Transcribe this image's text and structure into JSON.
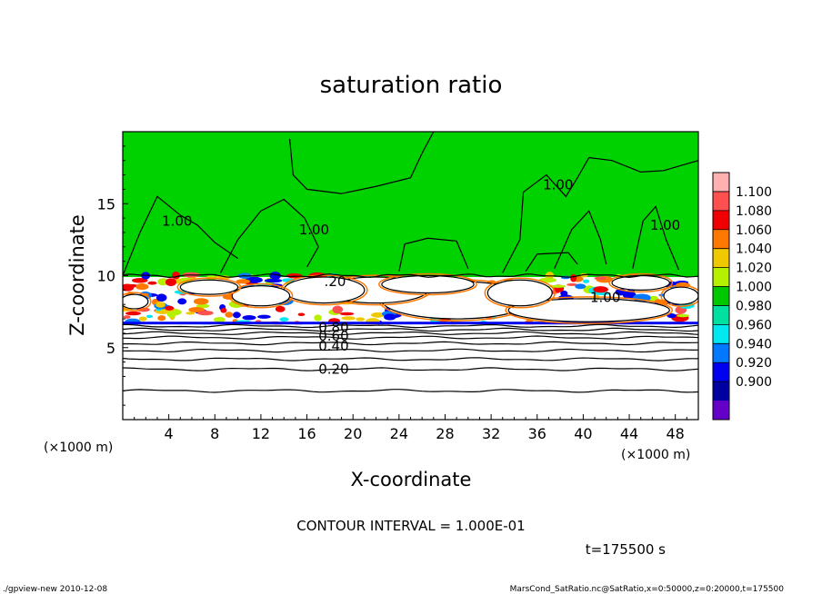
{
  "chart_data": {
    "type": "heatmap",
    "title": "saturation ratio",
    "xlabel": "X-coordinate",
    "ylabel": "Z-coordinate",
    "x_unit_label": "(×1000 m)",
    "y_unit_label": "(×1000 m)",
    "xlim": [
      0,
      50
    ],
    "ylim": [
      0,
      20
    ],
    "x_ticks": [
      4,
      8,
      12,
      16,
      20,
      24,
      28,
      32,
      36,
      40,
      44,
      48
    ],
    "y_ticks": [
      5,
      10,
      15
    ],
    "contour_interval_text": "CONTOUR INTERVAL = 1.000E-01",
    "time_text": "t=175500 s",
    "contour_labels": [
      {
        "x": 36.5,
        "z": 16.3,
        "text": "1.00"
      },
      {
        "x": 3.4,
        "z": 13.8,
        "text": "1.00"
      },
      {
        "x": 15.3,
        "z": 13.2,
        "text": "1.00"
      },
      {
        "x": 45.8,
        "z": 13.5,
        "text": "1.00"
      },
      {
        "x": 40.6,
        "z": 8.5,
        "text": "1.00"
      },
      {
        "x": 17.5,
        "z": 9.6,
        "text": ".20"
      },
      {
        "x": 17.0,
        "z": 6.4,
        "text": "0.80"
      },
      {
        "x": 17.0,
        "z": 5.8,
        "text": "0.60"
      },
      {
        "x": 17.0,
        "z": 5.1,
        "text": "0.40"
      },
      {
        "x": 17.0,
        "z": 3.5,
        "text": "0.20"
      }
    ],
    "colorbar": {
      "levels": [
        "1.100",
        "1.080",
        "1.060",
        "1.040",
        "1.020",
        "1.000",
        "0.980",
        "0.960",
        "0.940",
        "0.920",
        "0.900"
      ],
      "colors": [
        "#ffb0b0",
        "#ff5050",
        "#f00000",
        "#ff7800",
        "#f0c800",
        "#b4f000",
        "#00c800",
        "#00e0a0",
        "#00e8f0",
        "#0078ff",
        "#0000f0",
        "#0000a0",
        "#6400c8"
      ]
    },
    "regions": {
      "upper_value": 1.0,
      "upper_color": "#00d200",
      "cloud_free_value": "below 0.9",
      "lower_layer_value_range": [
        0.0,
        0.8
      ]
    }
  },
  "footer": {
    "left": "./gpview-new  2010-12-08",
    "right": "MarsCond_SatRatio.nc@SatRatio,x=0:50000,z=0:20000,t=175500"
  }
}
